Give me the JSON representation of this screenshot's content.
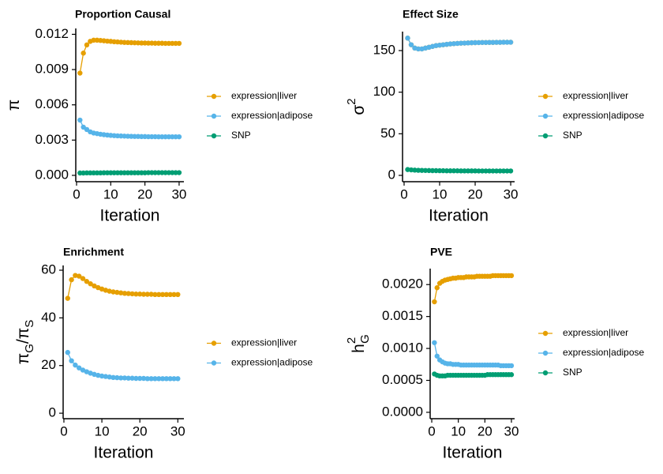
{
  "chart_data": [
    {
      "type": "line",
      "title": "Proportion Causal",
      "x_label": "Iteration",
      "y_label": [
        {
          "text": "π"
        }
      ],
      "x": [
        1,
        2,
        3,
        4,
        5,
        6,
        7,
        8,
        9,
        10,
        11,
        12,
        13,
        14,
        15,
        16,
        17,
        18,
        19,
        20,
        21,
        22,
        23,
        24,
        25,
        26,
        27,
        28,
        29,
        30
      ],
      "xlim": [
        -0.23,
        31.4
      ],
      "xticks": [
        0,
        10,
        20,
        30
      ],
      "ylim": [
        -0.00054,
        0.0125
      ],
      "yticks": [
        {
          "value": 0,
          "label": "0.000"
        },
        {
          "value": 0.003,
          "label": "0.003"
        },
        {
          "value": 0.006,
          "label": "0.006"
        },
        {
          "value": 0.009,
          "label": "0.009"
        },
        {
          "value": 0.012,
          "label": "0.012"
        }
      ],
      "series": [
        {
          "name": "expression|liver",
          "color": "#E69F00",
          "values": [
            0.0087,
            0.0104,
            0.0111,
            0.0114,
            0.0115,
            0.0115,
            0.01148,
            0.01145,
            0.01142,
            0.0114,
            0.01137,
            0.01135,
            0.01133,
            0.01131,
            0.0113,
            0.01129,
            0.01128,
            0.01127,
            0.01126,
            0.01126,
            0.01125,
            0.01125,
            0.01124,
            0.01124,
            0.01124,
            0.01123,
            0.01123,
            0.01123,
            0.01123,
            0.01123
          ]
        },
        {
          "name": "expression|adipose",
          "color": "#56B4E9",
          "values": [
            0.0047,
            0.0041,
            0.0039,
            0.0037,
            0.0036,
            0.00355,
            0.0035,
            0.00346,
            0.00343,
            0.0034,
            0.00338,
            0.00336,
            0.00335,
            0.00334,
            0.00333,
            0.00332,
            0.00331,
            0.00331,
            0.0033,
            0.0033,
            0.00329,
            0.00329,
            0.00329,
            0.00328,
            0.00328,
            0.00328,
            0.00328,
            0.00328,
            0.00328,
            0.00328
          ]
        },
        {
          "name": "SNP",
          "color": "#009E73",
          "values": [
            0.0002,
            0.0002,
            0.00021,
            0.00021,
            0.00021,
            0.00021,
            0.00021,
            0.00022,
            0.00022,
            0.00022,
            0.00022,
            0.00022,
            0.00022,
            0.00022,
            0.00022,
            0.00022,
            0.00022,
            0.00022,
            0.00022,
            0.00022,
            0.00023,
            0.00023,
            0.00023,
            0.00023,
            0.00023,
            0.00023,
            0.00023,
            0.00023,
            0.00023,
            0.00023
          ]
        }
      ]
    },
    {
      "type": "line",
      "title": "Effect Size",
      "x_label": "Iteration",
      "y_label": [
        {
          "text": "σ"
        },
        {
          "text": "2",
          "script": "sup"
        }
      ],
      "x": [
        1,
        2,
        3,
        4,
        5,
        6,
        7,
        8,
        9,
        10,
        11,
        12,
        13,
        14,
        15,
        16,
        17,
        18,
        19,
        20,
        21,
        22,
        23,
        24,
        25,
        26,
        27,
        28,
        29,
        30
      ],
      "xlim": [
        -0.44,
        31.1
      ],
      "xticks": [
        0,
        10,
        20,
        30
      ],
      "ylim": [
        -7.6,
        172.8
      ],
      "yticks": [
        0,
        50,
        100,
        150
      ],
      "series": [
        {
          "name": "expression|liver",
          "color": "#E69F00",
          "values": [
            165,
            157,
            153,
            152,
            152,
            153,
            154,
            155,
            156,
            156.5,
            157,
            157.5,
            158,
            158.3,
            158.6,
            158.9,
            159,
            159.2,
            159.4,
            159.5,
            159.6,
            159.7,
            159.7,
            159.8,
            159.8,
            159.9,
            159.9,
            160,
            160,
            160
          ]
        },
        {
          "name": "expression|adipose",
          "color": "#56B4E9",
          "values": [
            165,
            157,
            153,
            152,
            152,
            153,
            154,
            155,
            156,
            156.5,
            157,
            157.5,
            158,
            158.3,
            158.6,
            158.9,
            159,
            159.2,
            159.4,
            159.5,
            159.6,
            159.7,
            159.7,
            159.8,
            159.8,
            159.9,
            159.9,
            160,
            160,
            160
          ]
        },
        {
          "name": "SNP",
          "color": "#009E73",
          "values": [
            7,
            6.6,
            6.3,
            6.1,
            6,
            5.9,
            5.8,
            5.7,
            5.7,
            5.6,
            5.6,
            5.5,
            5.5,
            5.5,
            5.5,
            5.4,
            5.4,
            5.4,
            5.4,
            5.4,
            5.3,
            5.3,
            5.3,
            5.3,
            5.3,
            5.3,
            5.3,
            5.3,
            5.3,
            5.3
          ]
        }
      ]
    },
    {
      "type": "line",
      "title": "Enrichment",
      "x_label": "Iteration",
      "y_label": [
        {
          "text": "π"
        },
        {
          "text": "G",
          "script": "sub"
        },
        {
          "text": "/"
        },
        {
          "text": "π"
        },
        {
          "text": "S",
          "script": "sub"
        }
      ],
      "x": [
        1,
        2,
        3,
        4,
        5,
        6,
        7,
        8,
        9,
        10,
        11,
        12,
        13,
        14,
        15,
        16,
        17,
        18,
        19,
        20,
        21,
        22,
        23,
        24,
        25,
        26,
        27,
        28,
        29,
        30
      ],
      "xlim": [
        -0.2,
        31.6
      ],
      "xticks": [
        0,
        10,
        20,
        30
      ],
      "ylim": [
        -2.3,
        62
      ],
      "yticks": [
        0,
        20,
        40,
        60
      ],
      "series": [
        {
          "name": "expression|liver",
          "color": "#E69F00",
          "values": [
            48.2,
            56,
            57.8,
            57.5,
            56.5,
            55.3,
            54.3,
            53.4,
            52.7,
            52.1,
            51.6,
            51.2,
            50.9,
            50.7,
            50.5,
            50.3,
            50.2,
            50.1,
            50,
            50,
            49.9,
            49.9,
            49.9,
            49.8,
            49.8,
            49.8,
            49.8,
            49.8,
            49.8,
            49.8
          ]
        },
        {
          "name": "expression|adipose",
          "color": "#56B4E9",
          "values": [
            25.5,
            22,
            20.2,
            19,
            18.1,
            17.4,
            16.8,
            16.3,
            15.9,
            15.6,
            15.4,
            15.2,
            15,
            14.9,
            14.8,
            14.8,
            14.7,
            14.7,
            14.6,
            14.6,
            14.6,
            14.5,
            14.5,
            14.5,
            14.5,
            14.5,
            14.5,
            14.5,
            14.5,
            14.5
          ]
        }
      ]
    },
    {
      "type": "line",
      "title": "PVE",
      "x_label": "Iteration",
      "y_label": [
        {
          "text": "h"
        },
        {
          "text": "2",
          "script": "sup"
        },
        {
          "text": "G",
          "script": "sub"
        }
      ],
      "x": [
        1,
        2,
        3,
        4,
        5,
        6,
        7,
        8,
        9,
        10,
        11,
        12,
        13,
        14,
        15,
        16,
        17,
        18,
        19,
        20,
        21,
        22,
        23,
        24,
        25,
        26,
        27,
        28,
        29,
        30
      ],
      "xlim": [
        -0.6,
        31.2
      ],
      "xticks": [
        0,
        10,
        20,
        30
      ],
      "ylim": [
        -0.0001,
        0.00225
      ],
      "yticks": [
        {
          "value": 0,
          "label": "0.0000"
        },
        {
          "value": 0.0005,
          "label": "0.0005"
        },
        {
          "value": 0.001,
          "label": "0.0010"
        },
        {
          "value": 0.0015,
          "label": "0.0015"
        },
        {
          "value": 0.002,
          "label": "0.0020"
        }
      ],
      "series": [
        {
          "name": "expression|liver",
          "color": "#E69F00",
          "values": [
            0.00173,
            0.00195,
            0.00202,
            0.00205,
            0.00207,
            0.00208,
            0.00209,
            0.0021,
            0.0021,
            0.00211,
            0.00211,
            0.00211,
            0.00212,
            0.00212,
            0.00212,
            0.00212,
            0.00213,
            0.00213,
            0.00213,
            0.00213,
            0.00213,
            0.00213,
            0.00214,
            0.00214,
            0.00214,
            0.00214,
            0.00214,
            0.00214,
            0.00214,
            0.00214
          ]
        },
        {
          "name": "expression|adipose",
          "color": "#56B4E9",
          "values": [
            0.00109,
            0.00088,
            0.00082,
            0.00079,
            0.00077,
            0.00076,
            0.00076,
            0.00075,
            0.00075,
            0.00075,
            0.00074,
            0.00074,
            0.00074,
            0.00074,
            0.00074,
            0.00074,
            0.00074,
            0.00074,
            0.00074,
            0.00074,
            0.00074,
            0.00074,
            0.00074,
            0.00074,
            0.00074,
            0.00073,
            0.00073,
            0.00073,
            0.00073,
            0.00073
          ]
        },
        {
          "name": "SNP",
          "color": "#009E73",
          "values": [
            0.0006,
            0.00058,
            0.00057,
            0.00057,
            0.00057,
            0.00058,
            0.00058,
            0.00058,
            0.00058,
            0.00058,
            0.00058,
            0.00058,
            0.00058,
            0.00058,
            0.00058,
            0.00058,
            0.00058,
            0.00058,
            0.00058,
            0.00058,
            0.00059,
            0.00059,
            0.00059,
            0.00059,
            0.00059,
            0.00059,
            0.00059,
            0.00059,
            0.00059,
            0.00059
          ]
        }
      ]
    }
  ]
}
